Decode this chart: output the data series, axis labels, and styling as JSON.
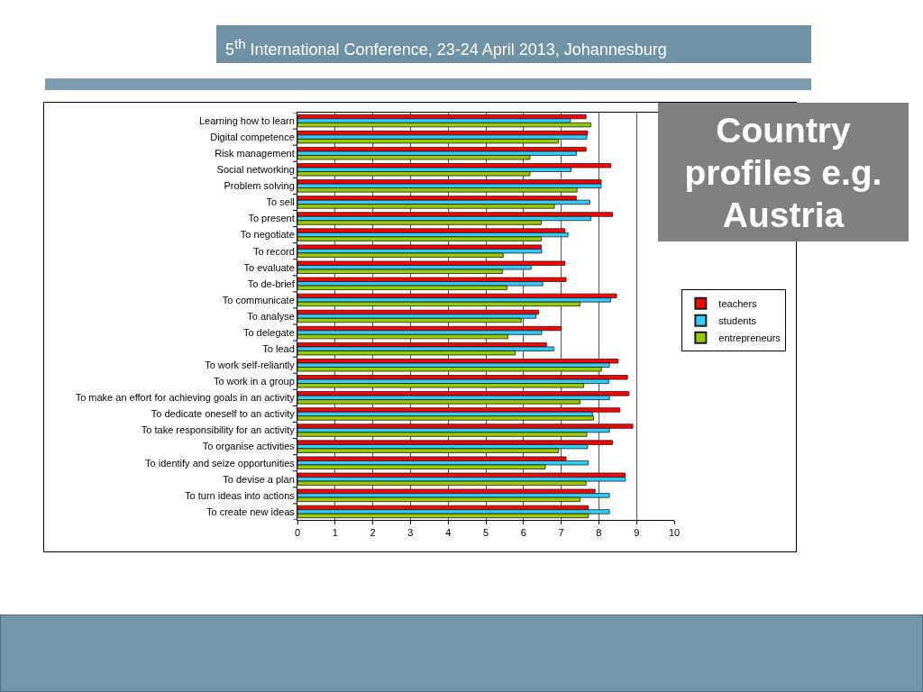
{
  "chart_data": {
    "type": "bar",
    "orientation": "horizontal",
    "title": "5$^{th}$ International Conference, 23-24 April 2013, Johannesburg",
    "subtitle": "Country profiles e.g. Austria",
    "categories": [
      "Learning how to learn",
      "Digital competence",
      "Risk management",
      "Social networking",
      "Problem solving",
      "To sell",
      "To present",
      "To negotiate",
      "To record",
      "To evaluate",
      "To de-brief",
      "To communicate",
      "To analyse",
      "To delegate",
      "To lead",
      "To work self-reliantly",
      "To work in a group",
      "To make an effort for achieving goals in an activity",
      "To dedicate oneself to an activity",
      "To take responsibility for an activity",
      "To organise activities",
      "To identify and seize opportunities",
      "To devise a plan",
      "To turn ideas into actions",
      "To create new ideas"
    ],
    "series": [
      {
        "name": "teachers",
        "color": "#ff0000",
        "values": [
          7.66,
          7.7,
          7.66,
          8.32,
          8.06,
          7.4,
          8.36,
          7.1,
          6.47,
          7.1,
          7.13,
          8.47,
          6.4,
          7.0,
          6.61,
          8.51,
          8.76,
          8.8,
          8.56,
          8.9,
          8.36,
          7.13,
          8.7,
          7.9,
          7.72
        ]
      },
      {
        "name": "students",
        "color": "#33ccff",
        "values": [
          7.24,
          7.68,
          7.4,
          7.26,
          8.06,
          7.76,
          7.79,
          7.18,
          6.48,
          6.2,
          6.51,
          8.31,
          6.33,
          6.48,
          6.8,
          8.28,
          8.26,
          8.28,
          7.83,
          8.28,
          7.7,
          7.72,
          8.7,
          8.28,
          8.28
        ]
      },
      {
        "name": "entrepreneurs",
        "color": "#99cc00",
        "values": [
          7.79,
          6.93,
          6.17,
          6.17,
          7.42,
          6.82,
          6.47,
          6.47,
          5.46,
          5.44,
          5.56,
          7.5,
          5.94,
          5.59,
          5.78,
          8.07,
          7.6,
          7.5,
          7.86,
          7.68,
          6.93,
          6.58,
          7.66,
          7.5,
          7.72
        ]
      }
    ],
    "xlim": [
      0,
      10
    ],
    "xticks": [
      0,
      1,
      2,
      3,
      4,
      5,
      6,
      7,
      8,
      9,
      10
    ],
    "grid": "x",
    "legend": "right"
  }
}
